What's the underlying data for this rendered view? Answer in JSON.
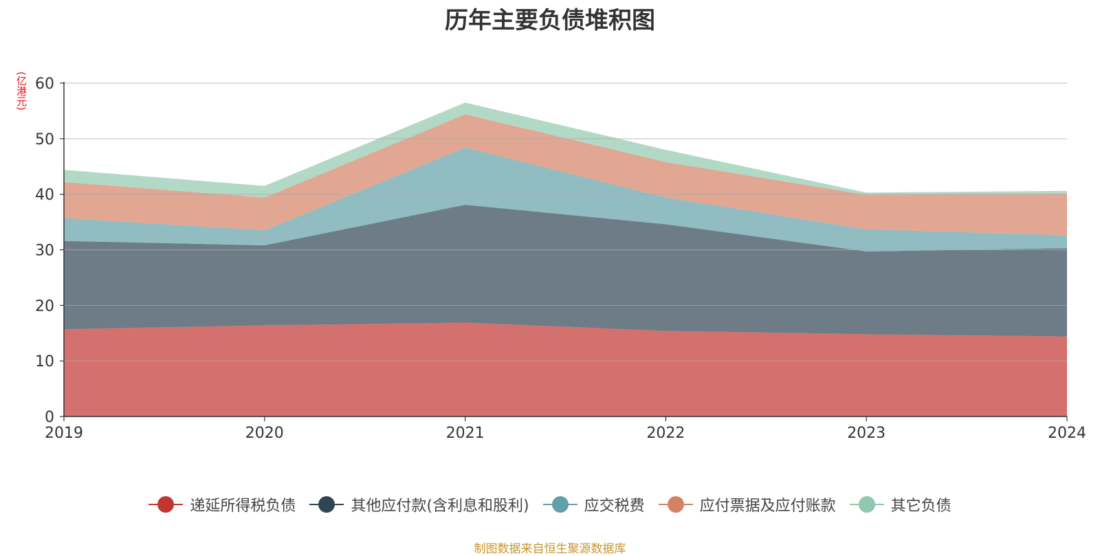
{
  "chart_data": {
    "type": "area",
    "title": "历年主要负债堆积图",
    "unit": "(亿港元)",
    "stacked": true,
    "x": [
      "2019",
      "2020",
      "2021",
      "2022",
      "2023",
      "2024"
    ],
    "ylim": [
      0,
      60
    ],
    "yticks": [
      0,
      10,
      20,
      30,
      40,
      50,
      60
    ],
    "grid": true,
    "legend_position": "bottom",
    "series": [
      {
        "name": "递延所得税负债",
        "color": "#c23531",
        "values": [
          15.7,
          16.4,
          16.9,
          15.4,
          14.8,
          14.4
        ]
      },
      {
        "name": "其他应付款(含利息和股利)",
        "color": "#2f4554",
        "values": [
          15.9,
          14.4,
          21.2,
          19.2,
          14.9,
          15.9
        ]
      },
      {
        "name": "应交税费",
        "color": "#61a0a8",
        "values": [
          4.1,
          2.7,
          10.3,
          4.8,
          4.0,
          2.3
        ]
      },
      {
        "name": "应付票据及应付账款",
        "color": "#d48265",
        "values": [
          6.5,
          5.9,
          6.0,
          6.4,
          6.2,
          7.5
        ]
      },
      {
        "name": "其它负债",
        "color": "#91c7ae",
        "values": [
          2.2,
          2.1,
          2.1,
          2.2,
          0.4,
          0.5
        ]
      }
    ]
  },
  "source_note": "制图数据来自恒生聚源数据库"
}
